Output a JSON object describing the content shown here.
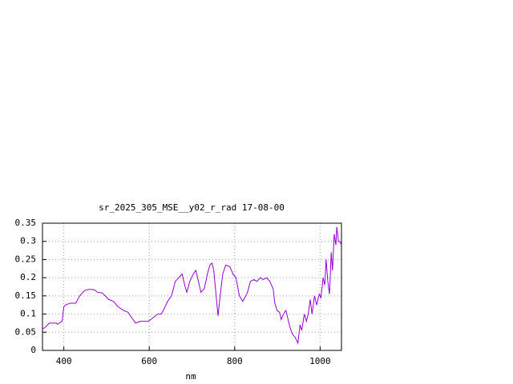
{
  "chart_data": {
    "type": "line",
    "title": "sr_2025_305_MSE__y02_r_rad 17-08-00",
    "x_label": "nm",
    "xlim": [
      350,
      1050
    ],
    "xticks": [
      400,
      600,
      800,
      1000
    ],
    "ylim": [
      0,
      0.35
    ],
    "yticks": [
      0,
      0.05,
      0.1,
      0.15,
      0.2,
      0.25,
      0.3,
      0.35
    ],
    "grid": true,
    "series": [
      {
        "color": "#9400d3",
        "x": [
          350,
          355,
          366,
          382,
          385,
          396,
          400,
          404,
          415,
          428,
          437,
          449,
          460,
          471,
          479,
          490,
          497,
          505,
          516,
          527,
          540,
          550,
          559,
          568,
          579,
          588,
          598,
          609,
          620,
          628,
          635,
          643,
          652,
          661,
          673,
          677,
          684,
          688,
          695,
          703,
          709,
          714,
          721,
          729,
          736,
          742,
          747,
          751,
          759,
          761,
          766,
          772,
          779,
          789,
          796,
          803,
          811,
          819,
          826,
          830,
          837,
          845,
          852,
          860,
          867,
          875,
          882,
          890,
          894,
          899,
          905,
          909,
          914,
          920,
          925,
          929,
          935,
          942,
          948,
          953,
          957,
          963,
          968,
          972,
          977,
          981,
          987,
          992,
          998,
          1002,
          1007,
          1011,
          1014,
          1018,
          1022,
          1026,
          1029,
          1033,
          1037,
          1039,
          1043,
          1046,
          1050
        ],
        "values": [
          0.06,
          0.062,
          0.075,
          0.075,
          0.072,
          0.08,
          0.12,
          0.125,
          0.13,
          0.13,
          0.15,
          0.165,
          0.168,
          0.167,
          0.16,
          0.158,
          0.15,
          0.14,
          0.135,
          0.12,
          0.11,
          0.105,
          0.09,
          0.075,
          0.08,
          0.08,
          0.08,
          0.09,
          0.1,
          0.1,
          0.115,
          0.135,
          0.15,
          0.19,
          0.205,
          0.21,
          0.175,
          0.16,
          0.19,
          0.21,
          0.22,
          0.195,
          0.16,
          0.17,
          0.21,
          0.235,
          0.24,
          0.22,
          0.12,
          0.095,
          0.15,
          0.21,
          0.235,
          0.23,
          0.21,
          0.2,
          0.15,
          0.135,
          0.15,
          0.16,
          0.19,
          0.195,
          0.19,
          0.2,
          0.195,
          0.2,
          0.19,
          0.17,
          0.13,
          0.11,
          0.105,
          0.085,
          0.1,
          0.11,
          0.085,
          0.065,
          0.045,
          0.035,
          0.02,
          0.07,
          0.055,
          0.1,
          0.08,
          0.1,
          0.14,
          0.1,
          0.15,
          0.125,
          0.155,
          0.145,
          0.2,
          0.18,
          0.25,
          0.19,
          0.155,
          0.27,
          0.22,
          0.32,
          0.29,
          0.34,
          0.3,
          0.3,
          0.29
        ]
      }
    ]
  }
}
